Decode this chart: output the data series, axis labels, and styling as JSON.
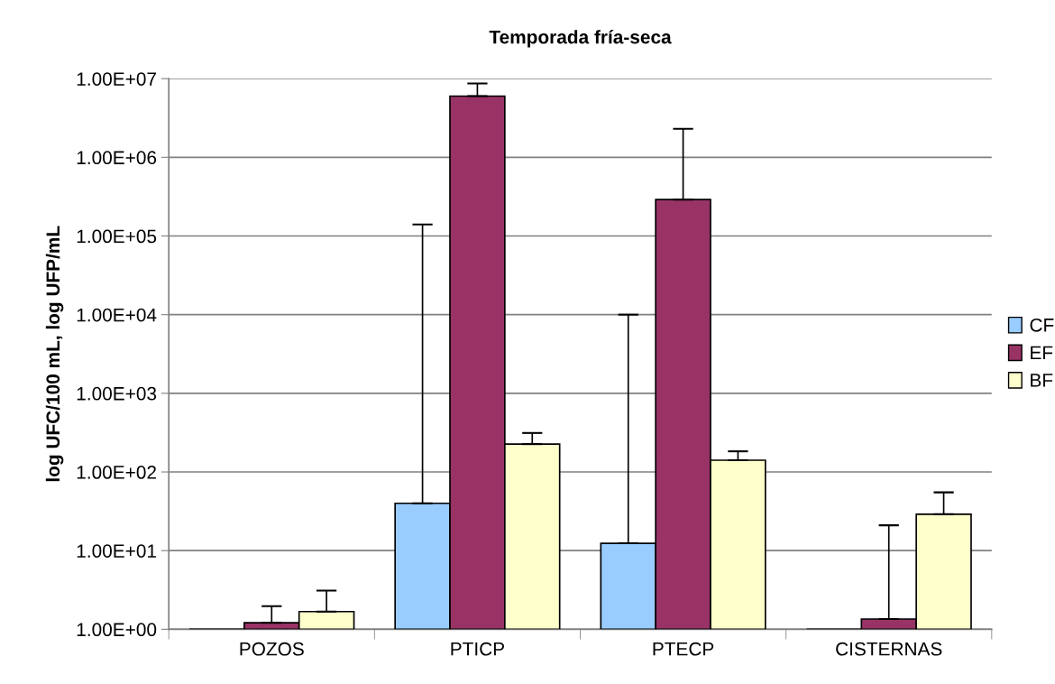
{
  "chart_data": {
    "type": "bar",
    "title": "Temporada fría-seca",
    "ylabel": "log UFC/100 mL, log UFP/mL",
    "categories": [
      "POZOS",
      "PTICP",
      "PTECP",
      "CISTERNAS"
    ],
    "series": [
      {
        "name": "CF",
        "color": "#99ccff",
        "values": [
          null,
          40,
          12.4,
          null
        ],
        "errors": [
          null,
          [
            40,
            140000
          ],
          [
            12.4,
            10000
          ],
          null
        ]
      },
      {
        "name": "EF",
        "color": "#993366",
        "values": [
          1.21,
          6000000,
          290000,
          1.35
        ],
        "errors": [
          [
            1.21,
            1.97
          ],
          [
            6000000,
            8700000
          ],
          [
            290000,
            2300000
          ],
          [
            1.35,
            21
          ]
        ]
      },
      {
        "name": "BF",
        "color": "#ffffcc",
        "values": [
          1.68,
          226,
          141,
          29
        ],
        "errors": [
          [
            1.68,
            3.1
          ],
          [
            226,
            313
          ],
          [
            141,
            183
          ],
          [
            29,
            55
          ]
        ]
      }
    ],
    "log": true,
    "ylim": [
      1,
      10000000
    ],
    "yticks": [
      {
        "value": 1,
        "label": "1.00E+00"
      },
      {
        "value": 10,
        "label": "1.00E+01"
      },
      {
        "value": 100,
        "label": "1.00E+02"
      },
      {
        "value": 1000,
        "label": "1.00E+03"
      },
      {
        "value": 10000,
        "label": "1.00E+04"
      },
      {
        "value": 100000,
        "label": "1.00E+05"
      },
      {
        "value": 1000000,
        "label": "1.00E+06"
      },
      {
        "value": 10000000,
        "label": "1.00E+07"
      }
    ],
    "grid": "y",
    "legend": "right"
  }
}
